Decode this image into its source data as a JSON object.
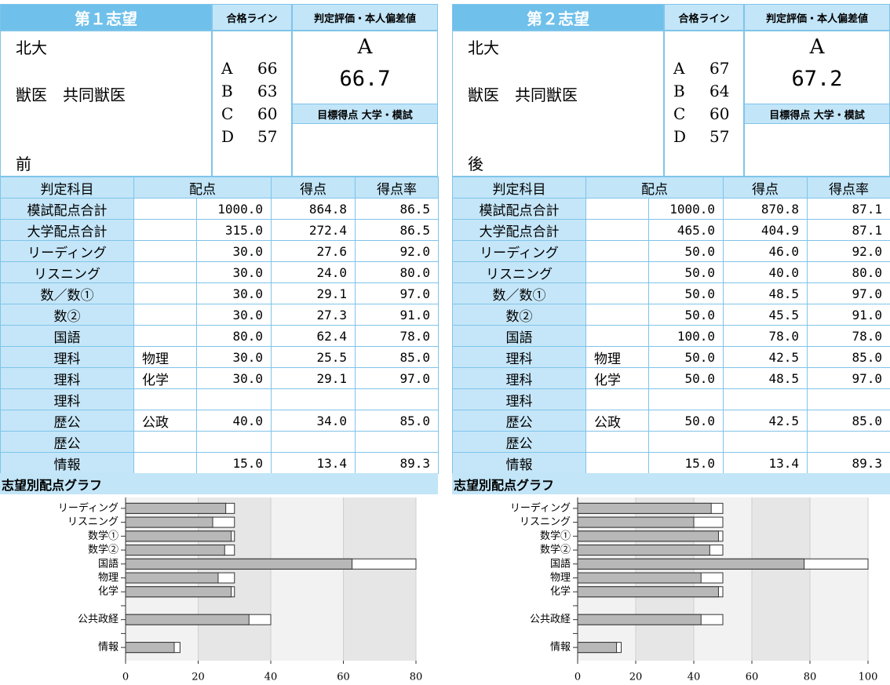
{
  "panels": [
    {
      "title": "第１志望",
      "pass_line_header": "合格ライン",
      "judge_header": "判定評価・本人偏差値",
      "university": "北大",
      "department": "獣医　共同獣医",
      "schedule": "前",
      "pass_lines": [
        [
          "A",
          "66"
        ],
        [
          "B",
          "63"
        ],
        [
          "C",
          "60"
        ],
        [
          "D",
          "57"
        ]
      ],
      "judgement": "A",
      "deviation": "66.7",
      "target_header": "目標得点 大学・模試",
      "table": {
        "columns": [
          "判定科目",
          "配点",
          "得点",
          "得点率"
        ],
        "rows": [
          [
            "模試配点合計",
            null,
            "1000.0",
            "864.8",
            "86.5"
          ],
          [
            "大学配点合計",
            null,
            "315.0",
            "272.4",
            "86.5"
          ],
          [
            "リーディング",
            null,
            "30.0",
            "27.6",
            "92.0"
          ],
          [
            "リスニング",
            null,
            "30.0",
            "24.0",
            "80.0"
          ],
          [
            "数／数①",
            null,
            "30.0",
            "29.1",
            "97.0"
          ],
          [
            "数②",
            null,
            "30.0",
            "27.3",
            "91.0"
          ],
          [
            "国語",
            null,
            "80.0",
            "62.4",
            "78.0"
          ],
          [
            "理科",
            "物理",
            "30.0",
            "25.5",
            "85.0"
          ],
          [
            "理科",
            "化学",
            "30.0",
            "29.1",
            "97.0"
          ],
          [
            "理科",
            null,
            null,
            null,
            null
          ],
          [
            "歴公",
            "公政",
            "40.0",
            "34.0",
            "85.0"
          ],
          [
            "歴公",
            null,
            null,
            null,
            null
          ],
          [
            "情報",
            null,
            "15.0",
            "13.4",
            "89.3"
          ]
        ]
      },
      "chart_data": {
        "type": "bar",
        "title": "志望別配点グラフ",
        "orientation": "horizontal",
        "categories": [
          "リーディング",
          "リスニング",
          "数学①",
          "数学②",
          "国語",
          "物理",
          "化学",
          null,
          "公共政経",
          null,
          "情報"
        ],
        "series": [
          {
            "color": "#ffffff",
            "values": [
              30,
              30,
              30,
              30,
              80,
              30,
              30,
              null,
              40,
              null,
              15
            ]
          },
          {
            "color": "#b8b8b8",
            "values": [
              27.6,
              24.0,
              29.1,
              27.3,
              62.4,
              25.5,
              29.1,
              null,
              34.0,
              null,
              13.4
            ]
          }
        ],
        "xlim": [
          0,
          80
        ],
        "xticks": [
          0,
          20,
          40,
          60,
          80
        ],
        "grid": true
      }
    },
    {
      "title": "第２志望",
      "pass_line_header": "合格ライン",
      "judge_header": "判定評価・本人偏差値",
      "university": "北大",
      "department": "獣医　共同獣医",
      "schedule": "後",
      "pass_lines": [
        [
          "A",
          "67"
        ],
        [
          "B",
          "64"
        ],
        [
          "C",
          "60"
        ],
        [
          "D",
          "57"
        ]
      ],
      "judgement": "A",
      "deviation": "67.2",
      "target_header": "目標得点 大学・模試",
      "table": {
        "columns": [
          "判定科目",
          "配点",
          "得点",
          "得点率"
        ],
        "rows": [
          [
            "模試配点合計",
            null,
            "1000.0",
            "870.8",
            "87.1"
          ],
          [
            "大学配点合計",
            null,
            "465.0",
            "404.9",
            "87.1"
          ],
          [
            "リーディング",
            null,
            "50.0",
            "46.0",
            "92.0"
          ],
          [
            "リスニング",
            null,
            "50.0",
            "40.0",
            "80.0"
          ],
          [
            "数／数①",
            null,
            "50.0",
            "48.5",
            "97.0"
          ],
          [
            "数②",
            null,
            "50.0",
            "45.5",
            "91.0"
          ],
          [
            "国語",
            null,
            "100.0",
            "78.0",
            "78.0"
          ],
          [
            "理科",
            "物理",
            "50.0",
            "42.5",
            "85.0"
          ],
          [
            "理科",
            "化学",
            "50.0",
            "48.5",
            "97.0"
          ],
          [
            "理科",
            null,
            null,
            null,
            null
          ],
          [
            "歴公",
            "公政",
            "50.0",
            "42.5",
            "85.0"
          ],
          [
            "歴公",
            null,
            null,
            null,
            null
          ],
          [
            "情報",
            null,
            "15.0",
            "13.4",
            "89.3"
          ]
        ]
      },
      "chart_data": {
        "type": "bar",
        "title": "志望別配点グラフ",
        "orientation": "horizontal",
        "categories": [
          "リーディング",
          "リスニング",
          "数学①",
          "数学②",
          "国語",
          "物理",
          "化学",
          null,
          "公共政経",
          null,
          "情報"
        ],
        "series": [
          {
            "color": "#ffffff",
            "values": [
              50,
              50,
              50,
              50,
              100,
              50,
              50,
              null,
              50,
              null,
              15
            ]
          },
          {
            "color": "#b8b8b8",
            "values": [
              46.0,
              40.0,
              48.5,
              45.5,
              78.0,
              42.5,
              48.5,
              null,
              42.5,
              null,
              13.4
            ]
          }
        ],
        "xlim": [
          0,
          100
        ],
        "xticks": [
          0,
          20,
          40,
          60,
          80,
          100
        ],
        "grid": true
      }
    }
  ]
}
